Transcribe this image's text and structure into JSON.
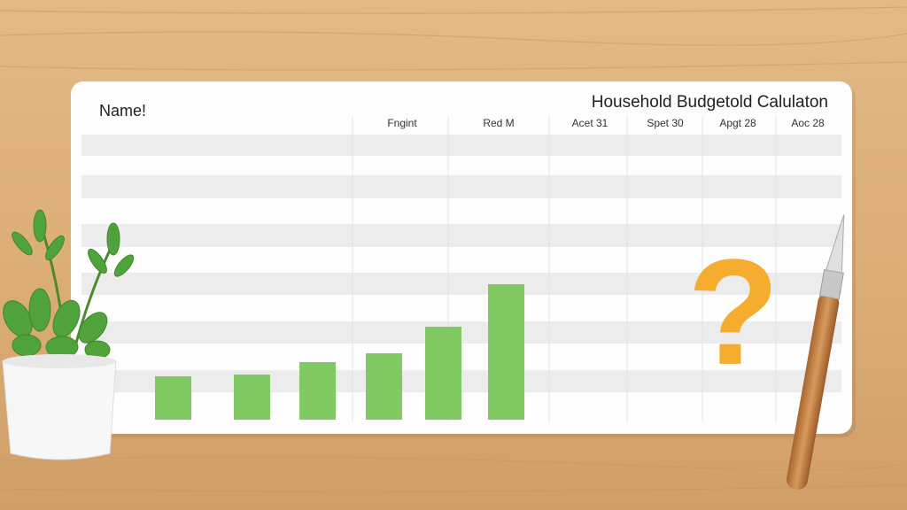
{
  "header": {
    "title": "Household Budgetold Calulaton",
    "name_label": "Name!"
  },
  "table": {
    "columns": [
      "Fngint",
      "Red M",
      "Acet 31",
      "Spet 30",
      "Apgt 28",
      "Aoc 28"
    ]
  },
  "chart": {
    "type": "bar",
    "values": [
      49,
      51,
      65,
      75,
      105,
      153
    ],
    "color": "#80c963"
  },
  "decoration": {
    "symbol": "?"
  }
}
